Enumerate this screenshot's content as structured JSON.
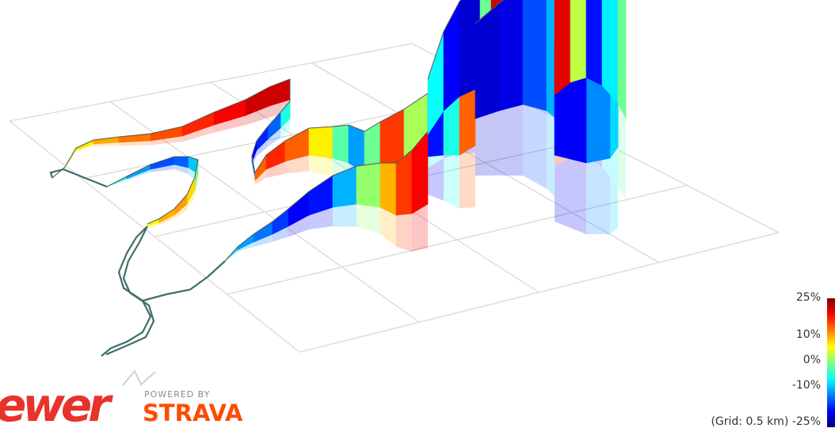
{
  "chart_data": {
    "type": "3d-route-elevation",
    "grid_note": "(Grid: 0.5 km)",
    "colorbar": {
      "label_values": [
        "25%",
        "10%",
        "0%",
        "-10%",
        "-25%"
      ],
      "range": [
        -25,
        25
      ],
      "colors": [
        "#00007f",
        "#0000ff",
        "#0080ff",
        "#00ffff",
        "#80ff80",
        "#ffff00",
        "#ff8000",
        "#ff0000",
        "#7f0000"
      ]
    }
  },
  "branding": {
    "left_logo": "ewer",
    "powered_by": "POWERED BY",
    "strava": "STRAVA"
  }
}
